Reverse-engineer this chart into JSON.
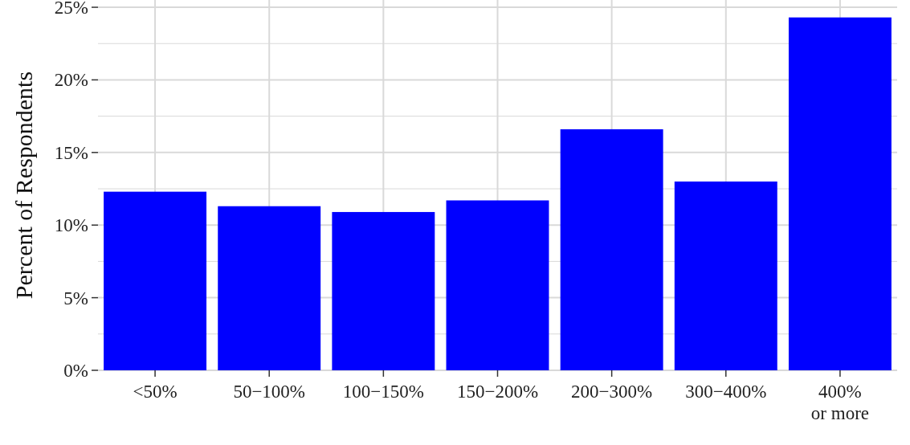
{
  "chart_data": {
    "type": "bar",
    "ylabel": "Percent of Respondents",
    "categories": [
      "<50%",
      "50−100%",
      "100−150%",
      "150−200%",
      "200−300%",
      "300−400%",
      "400%\nor more"
    ],
    "values": [
      12.3,
      11.3,
      10.9,
      11.7,
      16.6,
      13.0,
      24.3
    ],
    "color": "#0000ff",
    "ylim": [
      0,
      25.5
    ],
    "yticks": [
      {
        "value": 0,
        "label": "0%"
      },
      {
        "value": 2.5,
        "label": null
      },
      {
        "value": 5,
        "label": "5%"
      },
      {
        "value": 7.5,
        "label": null
      },
      {
        "value": 10,
        "label": "10%"
      },
      {
        "value": 12.5,
        "label": null
      },
      {
        "value": 15,
        "label": "15%"
      },
      {
        "value": 17.5,
        "label": null
      },
      {
        "value": 20,
        "label": "20%"
      },
      {
        "value": 22.5,
        "label": null
      },
      {
        "value": 25,
        "label": "25%"
      }
    ],
    "grid": true
  }
}
